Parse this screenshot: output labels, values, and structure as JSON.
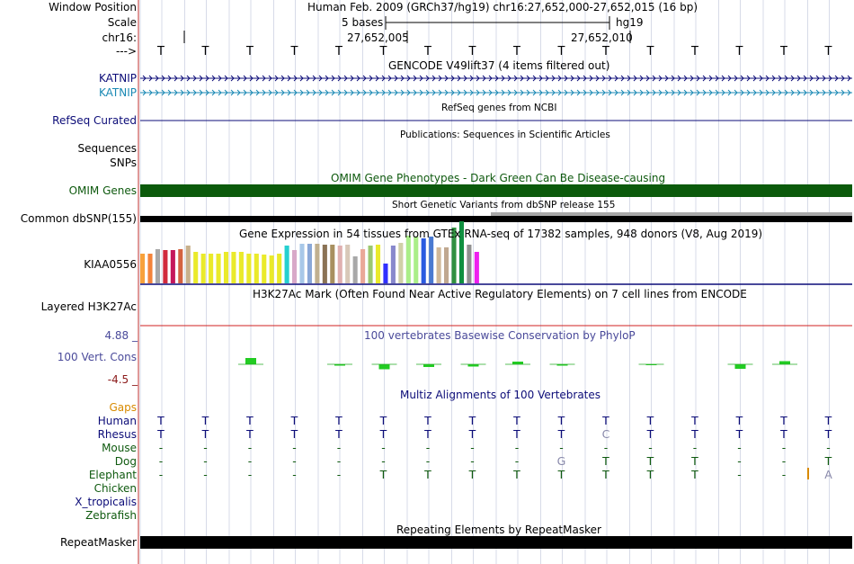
{
  "window": {
    "position_label": "Window Position",
    "position_value": "Human Feb. 2009 (GRCh37/hg19)   chr16:27,652,000-27,652,015 (16 bp)",
    "scale_label": "Scale",
    "scale_text": "5 bases",
    "scale_db": "hg19",
    "chrom_label": "chr16:",
    "coord_a": "27,652,005",
    "coord_b": "27,652,010",
    "arrow_label": "--->",
    "bases": [
      "T",
      "T",
      "T",
      "T",
      "T",
      "T",
      "T",
      "T",
      "T",
      "T",
      "T",
      "T",
      "T",
      "T",
      "T",
      "T"
    ]
  },
  "tracks": {
    "gencode_title": "GENCODE V49lift37 (4 items filtered out)",
    "gene1": "KATNIP",
    "gene2": "KATNIP",
    "gene1_color": "#0c0c78",
    "gene2_color": "#1a89b4",
    "refseq_title": "RefSeq genes from NCBI",
    "refseq_label": "RefSeq Curated",
    "pubs_title": "Publications: Sequences in Scientific Articles",
    "pubs_label": "Sequences",
    "snps_label": "SNPs",
    "omim_title": "OMIM Gene Phenotypes - Dark Green Can Be Disease-causing",
    "omim_label": "OMIM Genes",
    "omim_color": "#0b5a0b",
    "dbsnp_title": "Short Genetic Variants from dbSNP release 155",
    "dbsnp_label": "Common dbSNP(155)",
    "gtex_title": "Gene Expression in 54 tissues from GTEx RNA-seq of 17382 samples, 948 donors (V8, Aug 2019)",
    "gtex_label": "KIAA0556",
    "h3k_title": "H3K27Ac Mark (Often Found Near Active Regulatory Elements) on 7 cell lines from ENCODE",
    "h3k_label": "Layered H3K27Ac",
    "phylop_title": "100 vertebrates Basewise Conservation by PhyloP",
    "phylop_label": "100 Vert. Cons",
    "phylop_max": "4.88 _",
    "phylop_min": "-4.5 _",
    "phylop_values": [
      0,
      0,
      1.4,
      0,
      -0.3,
      -1.1,
      -0.6,
      -0.5,
      0.6,
      -0.3,
      0,
      -0.2,
      0,
      -1.0,
      0.7,
      0
    ],
    "multiz_title": "Multiz Alignments of 100 Vertebrates",
    "gaps_label": "Gaps",
    "repeat_title": "Repeating Elements by RepeatMasker",
    "repeat_label": "RepeatMasker"
  },
  "gtex": {
    "colors": [
      "#f8a13b",
      "#f4833a",
      "#a8a8a8",
      "#d12b3d",
      "#c4185c",
      "#d46240",
      "#c8b08c",
      "#eaea2a",
      "#eaea2a",
      "#eaea2a",
      "#eaea2a",
      "#eaea2a",
      "#eaea2a",
      "#eaea2a",
      "#eaea2a",
      "#eaea2a",
      "#eaea2a",
      "#eaea2a",
      "#eaea2a",
      "#25d0d0",
      "#d8a8c8",
      "#a8c8e8",
      "#8aa8d8",
      "#c0b090",
      "#8b7355",
      "#a89060",
      "#e0b0b0",
      "#d8c8b8",
      "#a8a8a8",
      "#eaa898",
      "#9cc870",
      "#eaea2a",
      "#3030ff",
      "#8888cc",
      "#d0d0a8",
      "#aaee88",
      "#aaee88",
      "#2a5ae0",
      "#4a7ad0",
      "#d0b898",
      "#c0a890",
      "#309040",
      "#109040",
      "#909090",
      "#ee20ee"
    ],
    "values": [
      0.33,
      0.33,
      0.38,
      0.37,
      0.37,
      0.38,
      0.42,
      0.35,
      0.33,
      0.33,
      0.33,
      0.35,
      0.35,
      0.35,
      0.33,
      0.33,
      0.32,
      0.31,
      0.33,
      0.42,
      0.37,
      0.44,
      0.44,
      0.44,
      0.43,
      0.43,
      0.42,
      0.43,
      0.3,
      0.38,
      0.42,
      0.43,
      0.22,
      0.42,
      0.45,
      0.53,
      0.52,
      0.5,
      0.52,
      0.4,
      0.4,
      0.62,
      0.69,
      0.43,
      0.35
    ]
  },
  "multiz": {
    "species": [
      {
        "name": "Human",
        "color": "#0c0c78",
        "bases": [
          "T",
          "T",
          "T",
          "T",
          "T",
          "T",
          "T",
          "T",
          "T",
          "T",
          "T",
          "T",
          "T",
          "T",
          "T",
          "T"
        ]
      },
      {
        "name": "Rhesus",
        "color": "#0c0c78",
        "bases": [
          "T",
          "T",
          "T",
          "T",
          "T",
          "T",
          "T",
          "T",
          "T",
          "T",
          "C",
          "T",
          "T",
          "T",
          "T",
          "T"
        ]
      },
      {
        "name": "Mouse",
        "color": "#0f5a0f",
        "bases": [
          "-",
          "-",
          "-",
          "-",
          "-",
          "-",
          "-",
          "-",
          "-",
          "-",
          "-",
          "-",
          "-",
          "-",
          "-",
          "-"
        ]
      },
      {
        "name": "Dog",
        "color": "#0f5a0f",
        "bases": [
          "-",
          "-",
          "-",
          "-",
          "-",
          "-",
          "-",
          "-",
          "-",
          "G",
          "T",
          "T",
          "T",
          "-",
          "-",
          "T"
        ]
      },
      {
        "name": "Elephant",
        "color": "#0f5a0f",
        "bases": [
          "-",
          "-",
          "-",
          "-",
          "-",
          "T",
          "T",
          "T",
          "T",
          "T",
          "T",
          "T",
          "T",
          "-",
          "-",
          "A"
        ]
      },
      {
        "name": "Chicken",
        "color": "#0f5a0f",
        "bases": [
          "",
          "",
          "",
          "",
          "",
          "",
          "",
          "",
          "",
          "",
          "",
          "",
          "",
          "",
          "",
          ""
        ]
      },
      {
        "name": "X_tropicalis",
        "color": "#0c0c78",
        "bases": [
          "",
          "",
          "",
          "",
          "",
          "",
          "",
          "",
          "",
          "",
          "",
          "",
          "",
          "",
          "",
          ""
        ]
      },
      {
        "name": "Zebrafish",
        "color": "#0f5a0f",
        "bases": [
          "",
          "",
          "",
          "",
          "",
          "",
          "",
          "",
          "",
          "",
          "",
          "",
          "",
          "",
          "",
          ""
        ]
      }
    ]
  }
}
